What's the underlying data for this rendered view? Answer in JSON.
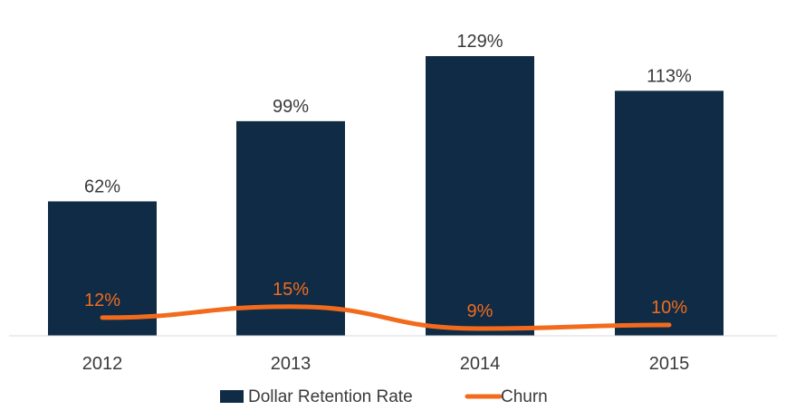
{
  "chart_data": {
    "type": "bar",
    "categories": [
      "2012",
      "2013",
      "2014",
      "2015"
    ],
    "series": [
      {
        "name": "Dollar Retention Rate",
        "type": "bar",
        "values": [
          62,
          99,
          129,
          113
        ],
        "labels": [
          "62%",
          "99%",
          "129%",
          "113%"
        ],
        "color": "#0f2b45"
      },
      {
        "name": "Churn",
        "type": "line",
        "values": [
          12,
          15,
          9,
          10
        ],
        "labels": [
          "12%",
          "15%",
          "9%",
          "10%"
        ],
        "color": "#f26b1d"
      }
    ],
    "ylim": [
      0,
      140
    ],
    "grid": false,
    "legend": "bottom"
  }
}
